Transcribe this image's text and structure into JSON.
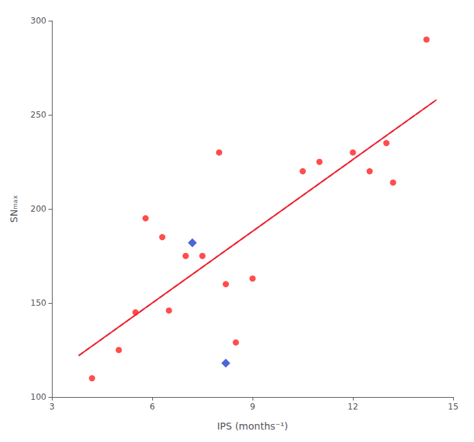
{
  "chart_data": {
    "type": "scatter",
    "xlabel": "IPS (months⁻¹)",
    "ylabel": "SNₘₐₓ",
    "xlim": [
      3,
      15
    ],
    "ylim": [
      100,
      300
    ],
    "xticks": [
      3,
      6,
      9,
      12,
      15
    ],
    "yticks": [
      100,
      150,
      200,
      250,
      300
    ],
    "grid": false,
    "series": [
      {
        "type": "line",
        "x": [
          3.8,
          14.5
        ],
        "values": [
          122,
          258
        ],
        "color": "#3355ee",
        "line_style": "dashed"
      },
      {
        "type": "line",
        "x": [
          3.8,
          14.5
        ],
        "values": [
          122,
          258
        ],
        "color": "#ff2020",
        "line_style": "solid"
      },
      {
        "type": "scatter",
        "marker": "circle",
        "color": "#ff2020",
        "x": [
          4.2,
          5.0,
          5.5,
          5.8,
          6.3,
          6.5,
          7.0,
          7.5,
          8.0,
          8.2,
          8.5,
          9.0,
          10.5,
          11.0,
          12.0,
          12.5,
          13.0,
          13.2,
          14.2
        ],
        "values": [
          110,
          125,
          145,
          195,
          185,
          146,
          175,
          175,
          230,
          160,
          129,
          163,
          220,
          225,
          230,
          220,
          235,
          214,
          290
        ]
      },
      {
        "type": "scatter",
        "marker": "diamond",
        "color": "#2040cc",
        "x": [
          7.2,
          8.2
        ],
        "values": [
          182,
          118
        ]
      }
    ]
  }
}
